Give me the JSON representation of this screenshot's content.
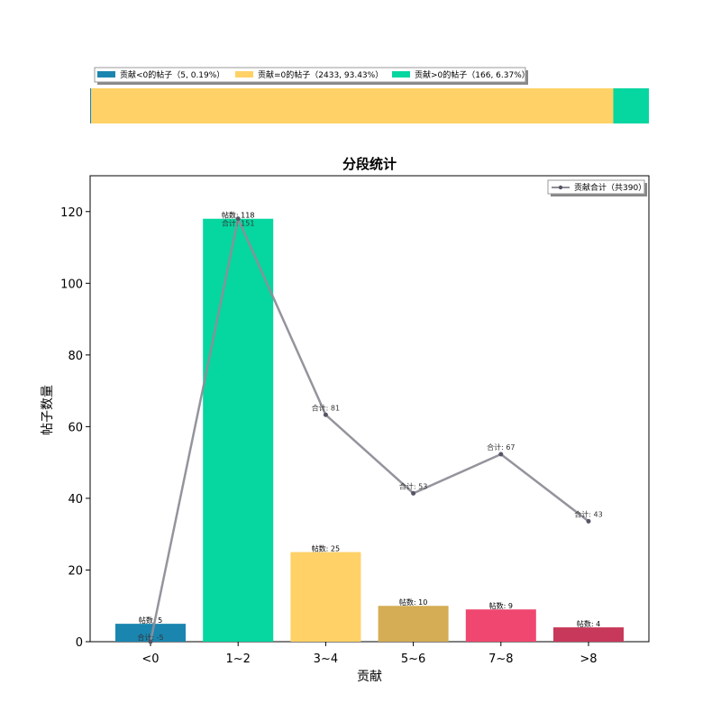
{
  "stacked_bar": {
    "legend": [
      {
        "label": "贡献<0的帖子（5, 0.19%）",
        "value": 5,
        "color": "#1a86b0"
      },
      {
        "label": "贡献=0的帖子（2433, 93.43%）",
        "value": 2433,
        "color": "#ffd166"
      },
      {
        "label": "贡献>0的帖子（166, 6.37%）",
        "value": 166,
        "color": "#06d6a0"
      }
    ]
  },
  "chart_data": {
    "type": "bar",
    "title": "分段统计",
    "xlabel": "贡献",
    "ylabel": "帖子数量",
    "categories": [
      "<0",
      "1~2",
      "3~4",
      "5~6",
      "7~8",
      ">8"
    ],
    "ylim": [
      0,
      130
    ],
    "yticks": [
      0,
      20,
      40,
      60,
      80,
      100,
      120
    ],
    "series": [
      {
        "kind": "bar",
        "values": [
          5,
          118,
          25,
          10,
          9,
          4
        ],
        "labels": [
          "帖数: 5",
          "帖数: 118",
          "帖数: 25",
          "帖数: 10",
          "帖数: 9",
          "帖数: 4"
        ],
        "colors": [
          "#1a86b0",
          "#06d6a0",
          "#ffd166",
          "#d4ad55",
          "#ef476f",
          "#c8385a"
        ]
      },
      {
        "kind": "line",
        "name": "贡献合计（共390）",
        "totals": [
          -5,
          151,
          81,
          53,
          67,
          43
        ],
        "values": [
          0,
          118,
          63.3,
          41.4,
          52.3,
          33.6
        ],
        "labels": [
          "合计: -5",
          "合计: 151",
          "合计: 81",
          "合计: 53",
          "合计: 67",
          "合计: 43"
        ],
        "color": "#8e8e98"
      }
    ],
    "legend_position": "top-right",
    "grid": false
  }
}
